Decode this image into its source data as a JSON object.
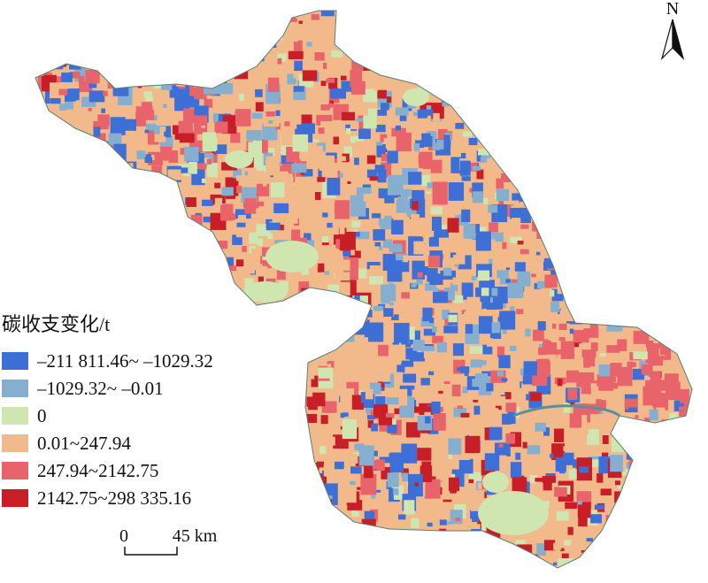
{
  "legend": {
    "title": "碳收支变化/t",
    "items": [
      {
        "label": "–211 811.46~ –1029.32",
        "color": "#3d6fd6"
      },
      {
        "label": "–1029.32~ –0.01",
        "color": "#86afcf"
      },
      {
        "label": "0",
        "color": "#cfe6b0"
      },
      {
        "label": "0.01~247.94",
        "color": "#f2b98a"
      },
      {
        "label": "247.94~2142.75",
        "color": "#e8636a"
      },
      {
        "label": "2142.75~298 335.16",
        "color": "#c81e28"
      }
    ]
  },
  "scale_bar": {
    "labels": [
      "0",
      "45 km"
    ]
  },
  "north_arrow": {
    "label": "N"
  }
}
